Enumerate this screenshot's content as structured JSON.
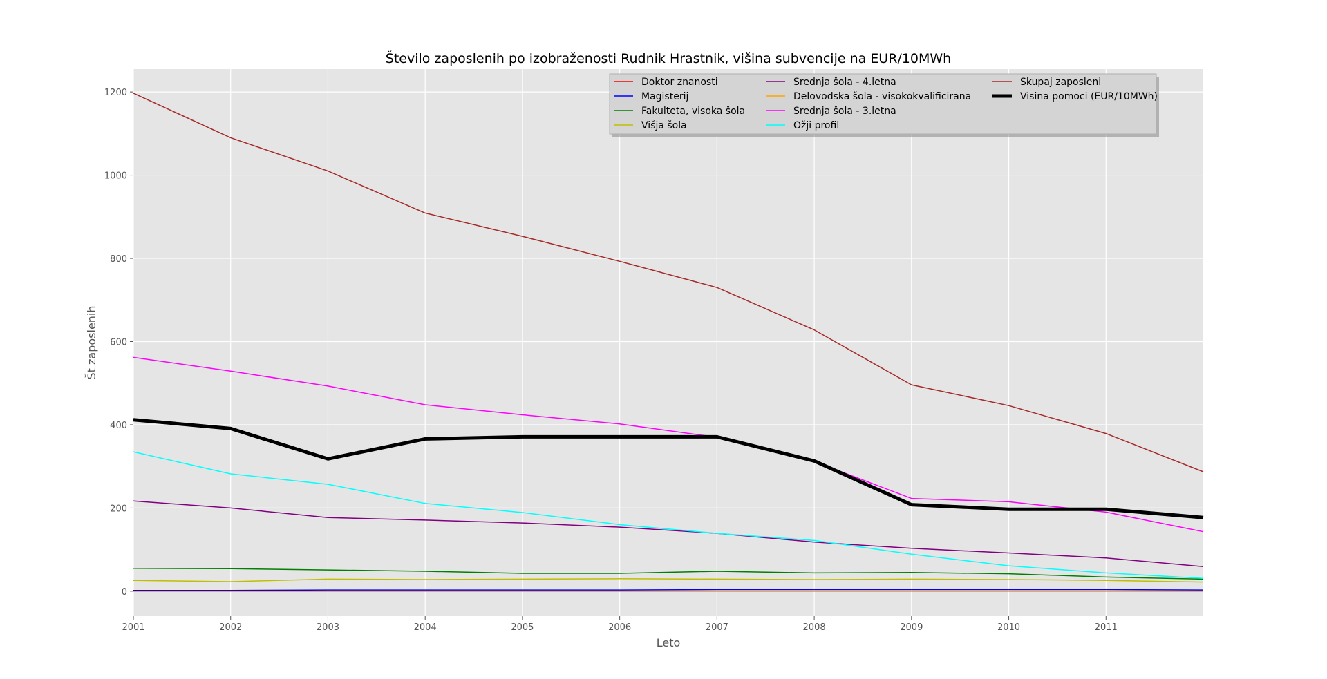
{
  "chart_data": {
    "type": "line",
    "title": "Število zaposlenih po izobraženosti Rudnik Hrastnik, višina subvencije na EUR/10MWh",
    "xlabel": "Leto",
    "ylabel": "Št zaposlenih",
    "x": [
      2001,
      2002,
      2003,
      2004,
      2005,
      2006,
      2007,
      2008,
      2009,
      2010,
      2011,
      2012
    ],
    "x_tick_labels": [
      "2001",
      "2002",
      "2003",
      "2004",
      "2005",
      "2006",
      "2007",
      "2008",
      "2009",
      "2010",
      "2011"
    ],
    "y_ticks": [
      0,
      200,
      400,
      600,
      800,
      1000,
      1200
    ],
    "xlim": [
      2001,
      2012
    ],
    "ylim": [
      -60,
      1255
    ],
    "grid": true,
    "legend_position": "top-right",
    "legend_columns": 3,
    "series": [
      {
        "name": "Doktor znanosti",
        "color": "#ff0000",
        "width": 1.5,
        "values": [
          0,
          0,
          0,
          0,
          0,
          0,
          0,
          0,
          0,
          0,
          0,
          0
        ]
      },
      {
        "name": "Magisterij",
        "color": "#0000ff",
        "width": 1.5,
        "values": [
          2,
          2,
          3,
          3,
          3,
          3,
          4,
          4,
          4,
          4,
          4,
          3
        ]
      },
      {
        "name": "Fakulteta, visoka šola",
        "color": "#008000",
        "width": 1.5,
        "values": [
          55,
          54,
          51,
          48,
          43,
          43,
          48,
          44,
          45,
          42,
          34,
          29
        ]
      },
      {
        "name": "Višja šola",
        "color": "#bfbf00",
        "width": 1.5,
        "values": [
          26,
          23,
          29,
          28,
          29,
          30,
          29,
          28,
          29,
          28,
          26,
          22
        ]
      },
      {
        "name": "Srednja šola - 4.letna",
        "color": "#800080",
        "width": 1.5,
        "values": [
          217,
          200,
          177,
          171,
          164,
          154,
          139,
          118,
          103,
          92,
          80,
          59
        ]
      },
      {
        "name": "Delovodska šola - visokokvalificirana",
        "color": "#ffa500",
        "width": 1.5,
        "values": [
          0,
          0,
          0,
          0,
          0,
          0,
          0,
          0,
          0,
          0,
          0,
          0
        ]
      },
      {
        "name": "Srednja šola - 3.letna",
        "color": "#ff00ff",
        "width": 1.5,
        "values": [
          562,
          529,
          493,
          448,
          424,
          402,
          370,
          312,
          223,
          215,
          190,
          143
        ]
      },
      {
        "name": "Ožji profil",
        "color": "#00ffff",
        "width": 1.5,
        "values": [
          335,
          282,
          257,
          211,
          189,
          160,
          139,
          122,
          89,
          61,
          44,
          31
        ]
      },
      {
        "name": "Skupaj zaposleni",
        "color": "#a52a2a",
        "width": 1.5,
        "values": [
          1197,
          1090,
          1010,
          909,
          853,
          793,
          730,
          628,
          496,
          446,
          379,
          287
        ]
      },
      {
        "name": "Visina pomoci (EUR/10MWh)",
        "color": "#000000",
        "width": 5,
        "values": [
          412,
          391,
          318,
          366,
          371,
          371,
          371,
          313,
          208,
          197,
          197,
          177
        ]
      }
    ]
  }
}
